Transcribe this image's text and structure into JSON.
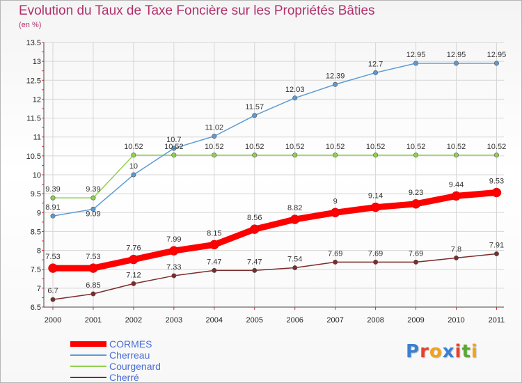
{
  "header": {
    "title": "Evolution du Taux de Taxe Foncière sur les Propriétés Bâties",
    "subtitle": "(en %)"
  },
  "logo": {
    "text": "Proxiti",
    "letter_colors": [
      "#3a7fd4",
      "#e8402a",
      "#f1a21c",
      "#3a7fd4",
      "#e8402a",
      "#5aa832",
      "#f1a21c"
    ]
  },
  "chart_data": {
    "type": "line",
    "title": "Evolution du Taux de Taxe Foncière sur les Propriétés Bâties",
    "ylabel": "(en %)",
    "x": [
      "2000",
      "2001",
      "2002",
      "2003",
      "2004",
      "2005",
      "2006",
      "2007",
      "2008",
      "2009",
      "2010",
      "2011"
    ],
    "ylim": [
      6.5,
      13.5
    ],
    "yticks": [
      "6.5",
      "7",
      "7.5",
      "8",
      "8.5",
      "9",
      "9.5",
      "10",
      "10.5",
      "11",
      "11.5",
      "12",
      "12.5",
      "13",
      "13.5"
    ],
    "grid": true,
    "legend_position": "bottom-left",
    "series": [
      {
        "name": "CORMES",
        "color": "#ff0000",
        "values": [
          7.53,
          7.53,
          7.76,
          7.99,
          8.15,
          8.56,
          8.82,
          9,
          9.14,
          9.23,
          9.44,
          9.53
        ],
        "labels": [
          "7.53",
          "7.53",
          "7.76",
          "7.99",
          "8.15",
          "8.56",
          "8.82",
          "9",
          "9.14",
          "9.23",
          "9.44",
          "9.53"
        ]
      },
      {
        "name": "Cherreau",
        "color": "#5b9bd5",
        "values": [
          8.91,
          9.09,
          10,
          10.7,
          11.02,
          11.57,
          12.03,
          12.39,
          12.7,
          12.95,
          12.95,
          12.95
        ],
        "labels": [
          "8.91",
          "9.09",
          "10",
          "10.7",
          "11.02",
          "11.57",
          "12.03",
          "12.39",
          "12.7",
          "12.95",
          "12.95",
          "12.95"
        ]
      },
      {
        "name": "Courgenard",
        "color": "#8fd14f",
        "values": [
          9.39,
          9.39,
          10.52,
          10.52,
          10.52,
          10.52,
          10.52,
          10.52,
          10.52,
          10.52,
          10.52,
          10.52
        ],
        "labels": [
          "9.39",
          "9.39",
          "10.52",
          "10.52",
          "10.52",
          "10.52",
          "10.52",
          "10.52",
          "10.52",
          "10.52",
          "10.52",
          "10.52"
        ]
      },
      {
        "name": "Cherré",
        "color": "#7b2c2c",
        "values": [
          6.7,
          6.85,
          7.12,
          7.33,
          7.47,
          7.47,
          7.54,
          7.69,
          7.69,
          7.69,
          7.8,
          7.91
        ],
        "labels": [
          "6.7",
          "6.85",
          "7.12",
          "7.33",
          "7.47",
          "7.47",
          "7.54",
          "7.69",
          "7.69",
          "7.69",
          "7.8",
          "7.91"
        ]
      }
    ]
  }
}
